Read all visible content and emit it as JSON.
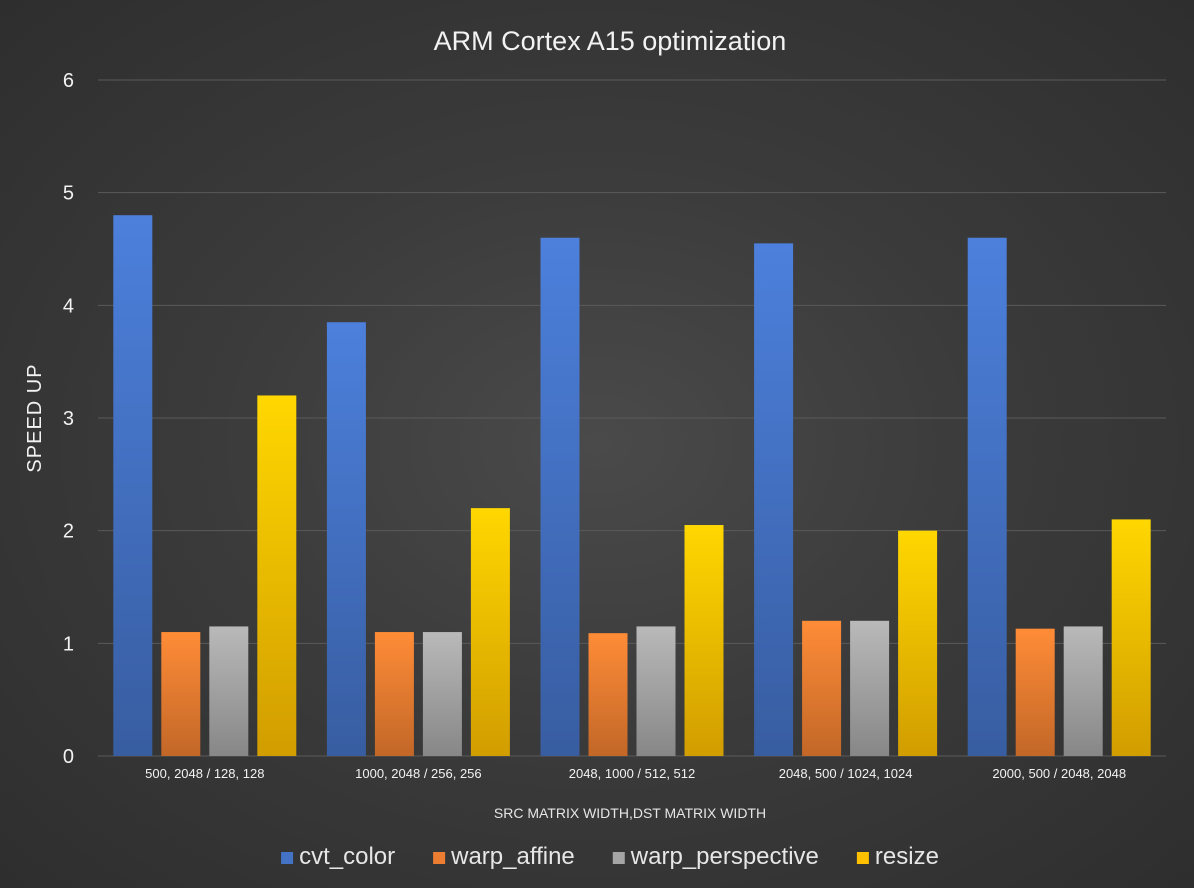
{
  "chart_data": {
    "type": "bar",
    "title": "ARM Cortex A15 optimization",
    "xlabel": "SRC MATRIX WIDTH,DST MATRIX WIDTH",
    "ylabel": "SPEED UP",
    "ylim": [
      0,
      6
    ],
    "yticks": [
      "0",
      "1",
      "2",
      "3",
      "4",
      "5",
      "6"
    ],
    "grid": true,
    "legend_position": "bottom",
    "categories": [
      "500, 2048 / 128,  128",
      "1000, 2048 / 256, 256",
      "2048, 1000 / 512, 512",
      "2048, 500 / 1024, 1024",
      "2000, 500 / 2048, 2048"
    ],
    "series": [
      {
        "name": "cvt_color",
        "color": "#4472c4",
        "values": [
          4.8,
          3.85,
          4.6,
          4.55,
          4.6
        ]
      },
      {
        "name": "warp_affine",
        "color": "#ed7d31",
        "values": [
          1.1,
          1.1,
          1.09,
          1.2,
          1.13
        ]
      },
      {
        "name": "warp_perspective",
        "color": "#a5a5a5",
        "values": [
          1.15,
          1.1,
          1.15,
          1.2,
          1.15
        ]
      },
      {
        "name": "resize",
        "color": "#ffc000",
        "values": [
          3.2,
          2.2,
          2.05,
          2.0,
          2.1
        ]
      }
    ]
  }
}
